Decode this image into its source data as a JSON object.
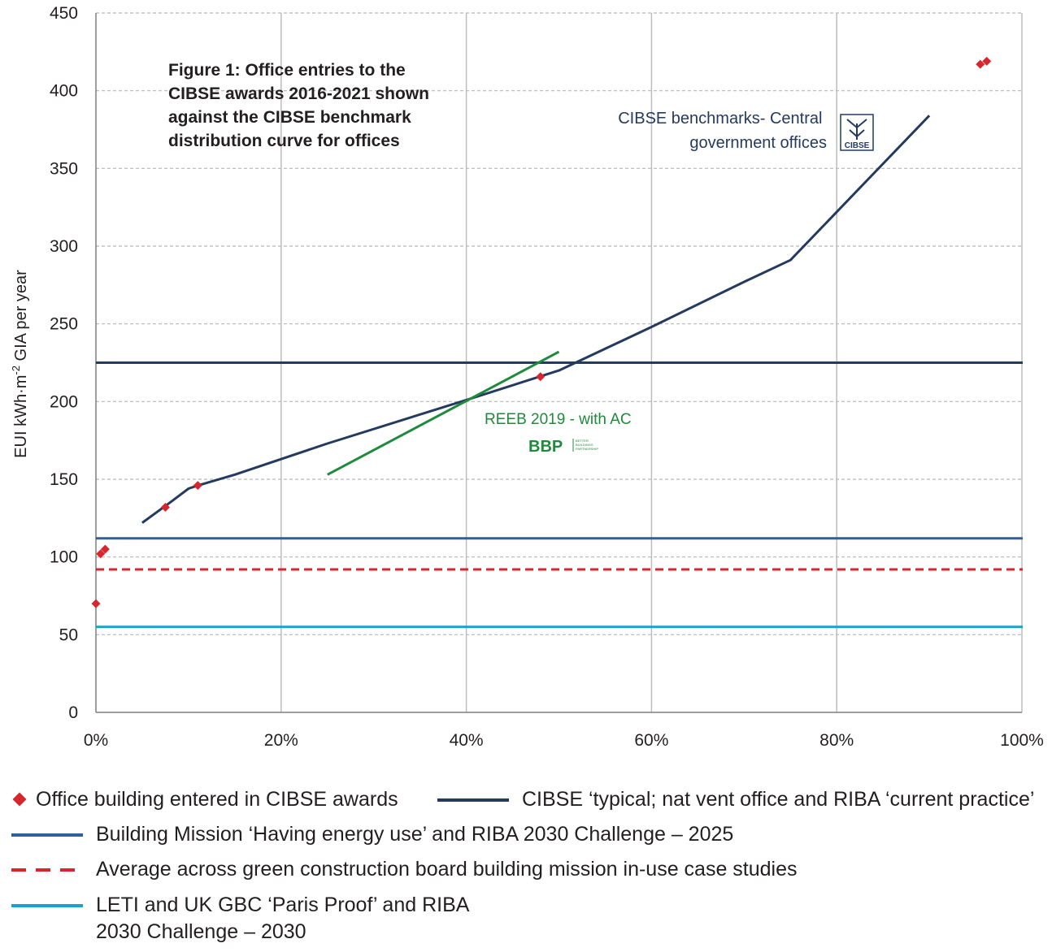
{
  "chart_data": {
    "type": "line",
    "title": "Figure 1: Office entries to the CIBSE awards 2016-2021 shown against the CIBSE benchmark distribution curve for offices",
    "title_lines": [
      "Figure 1: Office entries to the",
      "CIBSE awards 2016-2021 shown",
      "against the CIBSE benchmark",
      "distribution curve for offices"
    ],
    "xlabel": "",
    "ylabel": "EUI kWh·m⁻² GIA per year",
    "ylabel_prefix": "EUI kWh·m",
    "ylabel_sup": "-2",
    "ylabel_suffix": " GIA per year",
    "xlim": [
      0,
      100
    ],
    "ylim": [
      0,
      450
    ],
    "x_ticks": [
      "0%",
      "20%",
      "40%",
      "60%",
      "80%",
      "100%"
    ],
    "y_ticks": [
      "0",
      "50",
      "100",
      "150",
      "200",
      "250",
      "300",
      "350",
      "400",
      "450"
    ],
    "grid": true,
    "series": [
      {
        "name": "CIBSE ‘typical; nat vent office and RIBA ‘current practice’",
        "kind": "line",
        "color": "#243a5e",
        "x": [
          5,
          8,
          10,
          11,
          15,
          25,
          40,
          50,
          60,
          70,
          75,
          80,
          90
        ],
        "y": [
          122,
          135,
          144,
          146,
          153,
          173,
          201,
          220,
          248,
          277,
          291,
          322,
          384
        ]
      },
      {
        "name": "REEB 2019 - with AC",
        "kind": "line",
        "color": "#1e8a3c",
        "x": [
          25,
          50
        ],
        "y": [
          153,
          232
        ]
      },
      {
        "name": "Office building entered in CIBSE awards",
        "kind": "scatter",
        "color": "#d7262e",
        "x": [
          0,
          0.5,
          1,
          7.5,
          11,
          48,
          95.5,
          96.2
        ],
        "y": [
          70,
          102,
          105,
          132,
          146,
          216,
          417,
          419
        ]
      },
      {
        "name": "Building Mission ‘Having energy use’ and RIBA 2030 Challenge – 2025",
        "kind": "hline",
        "color": "#2f5f9e",
        "y": 112
      },
      {
        "name": "Average across green construction board building mission in-use case studies",
        "kind": "hline-dashed",
        "color": "#d7262e",
        "y": 92
      },
      {
        "name": "LETI and UK GBC ‘Paris Proof’ and RIBA 2030 Challenge – 2030",
        "kind": "hline",
        "color": "#1aa0d2",
        "y": 55
      },
      {
        "name": "",
        "kind": "hline",
        "color": "#243a5e",
        "y": 225
      }
    ],
    "annotations": {
      "cibse_line1": "CIBSE benchmarks- Central",
      "cibse_line2": "government offices",
      "cibse_logo": "CIBSE",
      "reeb": "REEB 2019 - with AC",
      "bbp_logo": "BBP",
      "bbp_small1": "BETTER",
      "bbp_small2": "BUILDINGS",
      "bbp_small3": "PARTNERSHIP"
    }
  },
  "legend": {
    "position": "bottom",
    "items": [
      {
        "label": "Office building entered in CIBSE awards",
        "swatch": "diamond",
        "color": "#d7262e"
      },
      {
        "label": "CIBSE ‘typical; nat vent office and RIBA ‘current practice’",
        "swatch": "line",
        "color": "#243a5e"
      },
      {
        "label": "Building Mission ‘Having energy use’ and RIBA 2030 Challenge – 2025",
        "swatch": "line",
        "color": "#2f5f9e"
      },
      {
        "label": "Average across green construction board building mission in-use case studies",
        "swatch": "dash",
        "color": "#d7262e"
      },
      {
        "label": "LETI and UK GBC ‘Paris Proof’ and RIBA\n2030 Challenge – 2030",
        "swatch": "line",
        "color": "#1aa0d2"
      }
    ]
  }
}
